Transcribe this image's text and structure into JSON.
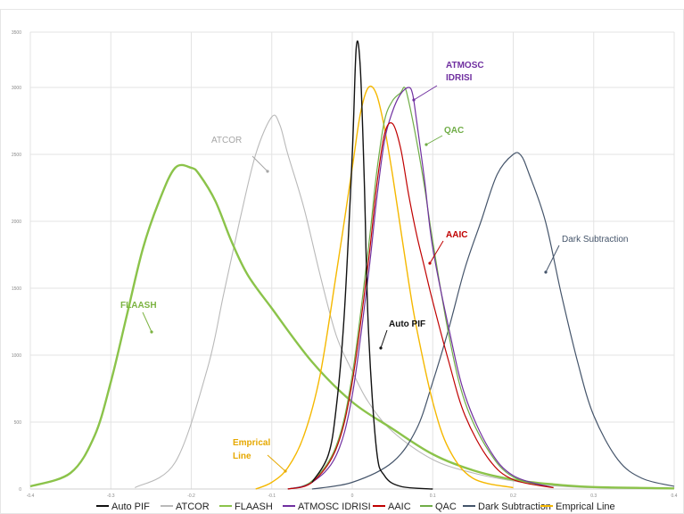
{
  "chart_data": {
    "type": "line",
    "title": "",
    "xlabel": "",
    "ylabel": "",
    "xlim": [
      -0.4,
      0.4
    ],
    "ylim": [
      0,
      3400
    ],
    "grid": true,
    "legend_placement": "bottom",
    "x_ticks": [
      -0.4,
      -0.3,
      -0.2,
      -0.1,
      0,
      0.1,
      0.2,
      0.3,
      0.4
    ],
    "x_tick_labels": [
      "-0.4",
      "-0.3",
      "-0.2",
      "-0.1",
      "0",
      "0.1",
      "0.2",
      "0.3",
      "0.4"
    ],
    "y_ticks": [
      0,
      500,
      1000,
      1500,
      2000,
      2500,
      3000,
      3500
    ],
    "y_tick_labels": [
      "0",
      "500",
      "1000",
      "1500",
      "2000",
      "2500",
      "3000",
      "3500"
    ],
    "series": [
      {
        "name": "Auto PIF",
        "color": "#111111",
        "width": 1.4,
        "x": [
          -0.05,
          -0.03,
          -0.02,
          -0.01,
          0.0,
          0.005,
          0.01,
          0.015,
          0.02,
          0.03,
          0.04,
          0.06,
          0.1
        ],
        "y": [
          50,
          250,
          600,
          1300,
          2500,
          3300,
          3150,
          2300,
          1200,
          300,
          100,
          20,
          0
        ]
      },
      {
        "name": "ATCOR",
        "color": "#b9b9b9",
        "width": 1.1,
        "x": [
          -0.27,
          -0.22,
          -0.18,
          -0.16,
          -0.14,
          -0.12,
          -0.1,
          -0.09,
          -0.08,
          -0.06,
          -0.04,
          -0.02,
          0.0,
          0.02,
          0.05,
          0.1,
          0.15,
          0.2,
          0.25,
          0.3,
          0.4
        ],
        "y": [
          10,
          200,
          900,
          1450,
          2000,
          2500,
          2780,
          2720,
          2500,
          2100,
          1600,
          1150,
          880,
          650,
          430,
          220,
          120,
          60,
          25,
          10,
          0
        ]
      },
      {
        "name": "FLAASH",
        "color": "#8bc34a",
        "width": 2.4,
        "x": [
          -0.4,
          -0.35,
          -0.32,
          -0.3,
          -0.28,
          -0.26,
          -0.24,
          -0.22,
          -0.2,
          -0.19,
          -0.17,
          -0.15,
          -0.13,
          -0.1,
          -0.05,
          0.0,
          0.05,
          0.1,
          0.15,
          0.2,
          0.25,
          0.3,
          0.4
        ],
        "y": [
          20,
          120,
          400,
          800,
          1300,
          1800,
          2150,
          2400,
          2400,
          2350,
          2150,
          1850,
          1600,
          1350,
          950,
          650,
          450,
          260,
          140,
          70,
          35,
          15,
          5
        ]
      },
      {
        "name": "ATMOSC IDRISI",
        "color": "#7030a0",
        "width": 1.2,
        "x": [
          -0.08,
          -0.05,
          -0.02,
          0.0,
          0.02,
          0.03,
          0.04,
          0.05,
          0.06,
          0.07,
          0.075,
          0.08,
          0.09,
          0.1,
          0.12,
          0.14,
          0.17,
          0.2,
          0.25
        ],
        "y": [
          0,
          50,
          250,
          700,
          1600,
          2150,
          2600,
          2820,
          2950,
          3000,
          2950,
          2750,
          2300,
          1800,
          1200,
          700,
          300,
          100,
          10
        ]
      },
      {
        "name": "AAIC",
        "color": "#c00000",
        "width": 1.2,
        "x": [
          -0.08,
          -0.05,
          -0.02,
          0.0,
          0.02,
          0.03,
          0.04,
          0.05,
          0.06,
          0.07,
          0.08,
          0.09,
          0.1,
          0.12,
          0.14,
          0.17,
          0.2,
          0.25
        ],
        "y": [
          0,
          50,
          300,
          800,
          1700,
          2250,
          2650,
          2730,
          2550,
          2200,
          1900,
          1650,
          1400,
          950,
          550,
          220,
          70,
          10
        ]
      },
      {
        "name": "QAC",
        "color": "#70ad47",
        "width": 1.2,
        "x": [
          -0.08,
          -0.05,
          -0.02,
          0.0,
          0.02,
          0.03,
          0.04,
          0.05,
          0.06,
          0.065,
          0.07,
          0.08,
          0.09,
          0.1,
          0.12,
          0.14,
          0.17,
          0.2,
          0.25
        ],
        "y": [
          0,
          60,
          320,
          850,
          1800,
          2350,
          2750,
          2900,
          2960,
          3000,
          2900,
          2600,
          2250,
          1850,
          1150,
          650,
          280,
          90,
          10
        ]
      },
      {
        "name": "Dark Subtraction",
        "color": "#44546a",
        "width": 1.2,
        "x": [
          -0.05,
          0.0,
          0.05,
          0.08,
          0.1,
          0.12,
          0.14,
          0.16,
          0.18,
          0.2,
          0.21,
          0.22,
          0.24,
          0.26,
          0.28,
          0.3,
          0.33,
          0.36,
          0.4
        ],
        "y": [
          0,
          50,
          200,
          450,
          800,
          1200,
          1650,
          2000,
          2350,
          2500,
          2490,
          2350,
          2000,
          1450,
          950,
          550,
          220,
          80,
          20
        ]
      },
      {
        "name": "Emprical Line",
        "color": "#f5b800",
        "width": 1.4,
        "x": [
          -0.12,
          -0.1,
          -0.08,
          -0.06,
          -0.04,
          -0.02,
          0.0,
          0.01,
          0.02,
          0.03,
          0.04,
          0.05,
          0.06,
          0.07,
          0.08,
          0.1,
          0.12,
          0.15,
          0.2
        ],
        "y": [
          0,
          50,
          160,
          400,
          850,
          1600,
          2400,
          2800,
          3000,
          2950,
          2700,
          2350,
          1950,
          1550,
          1200,
          650,
          300,
          80,
          10
        ]
      }
    ],
    "annotations": [
      {
        "text": "ATMOSC",
        "series": "ATMOSC IDRISI",
        "color": "#7030a0",
        "bold": true
      },
      {
        "text": "IDRISI",
        "series": "ATMOSC IDRISI",
        "color": "#7030a0",
        "bold": true
      },
      {
        "text": "QAC",
        "series": "QAC",
        "color": "#70ad47",
        "bold": true
      },
      {
        "text": "ATCOR",
        "series": "ATCOR",
        "color": "#a6a6a6",
        "bold": false
      },
      {
        "text": "AAIC",
        "series": "AAIC",
        "color": "#c00000",
        "bold": true
      },
      {
        "text": "Dark Subtraction",
        "series": "Dark Subtraction",
        "color": "#44546a",
        "bold": false
      },
      {
        "text": "FLAASH",
        "series": "FLAASH",
        "color": "#7cb342",
        "bold": true
      },
      {
        "text": "Auto PIF",
        "series": "Auto PIF",
        "color": "#111111",
        "bold": true
      },
      {
        "text": "Emprical",
        "series": "Emprical Line",
        "color": "#e6a800",
        "bold": true
      },
      {
        "text": "Line",
        "series": "Emprical Line",
        "color": "#e6a800",
        "bold": true
      }
    ]
  }
}
